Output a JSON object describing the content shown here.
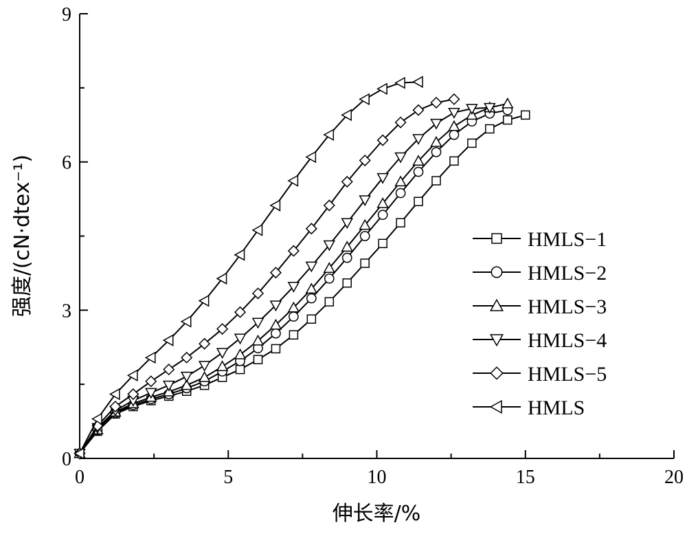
{
  "chart_data": {
    "type": "line",
    "xlabel": "伸长率/%",
    "ylabel": "强度/(cN·dtex⁻¹)",
    "xlim": [
      0,
      20
    ],
    "ylim": [
      0,
      9
    ],
    "x_ticks": [
      "0",
      "5",
      "10",
      "15",
      "20"
    ],
    "y_ticks": [
      "0",
      "3",
      "6",
      "9"
    ],
    "grid": false,
    "legend_position": "right",
    "series": [
      {
        "name": "HMLS−1",
        "marker": "square",
        "x": [
          0,
          0.6,
          1.2,
          1.8,
          2.4,
          3.0,
          3.6,
          4.2,
          4.8,
          5.4,
          6.0,
          6.6,
          7.2,
          7.8,
          8.4,
          9.0,
          9.6,
          10.2,
          10.8,
          11.4,
          12.0,
          12.6,
          13.2,
          13.8,
          14.4,
          15.0
        ],
        "y": [
          0.1,
          0.55,
          0.9,
          1.05,
          1.17,
          1.26,
          1.36,
          1.48,
          1.64,
          1.8,
          2.0,
          2.22,
          2.5,
          2.82,
          3.17,
          3.55,
          3.95,
          4.35,
          4.77,
          5.2,
          5.62,
          6.02,
          6.38,
          6.67,
          6.85,
          6.95
        ]
      },
      {
        "name": "HMLS−2",
        "marker": "circle",
        "x": [
          0,
          0.6,
          1.2,
          1.8,
          2.4,
          3.0,
          3.6,
          4.2,
          4.8,
          5.4,
          6.0,
          6.6,
          7.2,
          7.8,
          8.4,
          9.0,
          9.6,
          10.2,
          10.8,
          11.4,
          12.0,
          12.6,
          13.2,
          13.8,
          14.4
        ],
        "y": [
          0.1,
          0.57,
          0.92,
          1.08,
          1.2,
          1.3,
          1.42,
          1.56,
          1.76,
          1.97,
          2.23,
          2.53,
          2.87,
          3.24,
          3.64,
          4.06,
          4.5,
          4.93,
          5.37,
          5.8,
          6.2,
          6.55,
          6.82,
          6.98,
          7.05
        ]
      },
      {
        "name": "HMLS−3",
        "marker": "triangle-up",
        "x": [
          0,
          0.6,
          1.2,
          1.8,
          2.4,
          3.0,
          3.6,
          4.2,
          4.8,
          5.4,
          6.0,
          6.6,
          7.2,
          7.8,
          8.4,
          9.0,
          9.6,
          10.2,
          10.8,
          11.4,
          12.0,
          12.6,
          13.2,
          13.8,
          14.4
        ],
        "y": [
          0.1,
          0.58,
          0.94,
          1.11,
          1.24,
          1.35,
          1.48,
          1.64,
          1.86,
          2.1,
          2.38,
          2.7,
          3.05,
          3.43,
          3.85,
          4.28,
          4.72,
          5.16,
          5.6,
          6.02,
          6.4,
          6.72,
          6.95,
          7.1,
          7.18
        ]
      },
      {
        "name": "HMLS−4",
        "marker": "triangle-down",
        "x": [
          0,
          0.6,
          1.2,
          1.8,
          2.4,
          3.0,
          3.6,
          4.2,
          4.8,
          5.4,
          6.0,
          6.6,
          7.2,
          7.8,
          8.4,
          9.0,
          9.6,
          10.2,
          10.8,
          11.4,
          12.0,
          12.6,
          13.2,
          13.8
        ],
        "y": [
          0.1,
          0.62,
          0.97,
          1.17,
          1.33,
          1.48,
          1.66,
          1.88,
          2.14,
          2.43,
          2.75,
          3.1,
          3.48,
          3.89,
          4.32,
          4.77,
          5.23,
          5.68,
          6.1,
          6.47,
          6.78,
          7.0,
          7.08,
          7.1
        ]
      },
      {
        "name": "HMLS−5",
        "marker": "diamond",
        "x": [
          0,
          0.6,
          1.2,
          1.8,
          2.4,
          3.0,
          3.6,
          4.2,
          4.8,
          5.4,
          6.0,
          6.6,
          7.2,
          7.8,
          8.4,
          9.0,
          9.6,
          10.2,
          10.8,
          11.4,
          12.0,
          12.6
        ],
        "y": [
          0.1,
          0.66,
          1.05,
          1.3,
          1.56,
          1.8,
          2.04,
          2.32,
          2.62,
          2.96,
          3.34,
          3.76,
          4.2,
          4.65,
          5.12,
          5.6,
          6.03,
          6.44,
          6.8,
          7.05,
          7.2,
          7.27
        ]
      },
      {
        "name": "HMLS",
        "marker": "triangle-left",
        "x": [
          0,
          0.6,
          1.2,
          1.8,
          2.4,
          3.0,
          3.6,
          4.2,
          4.8,
          5.4,
          6.0,
          6.6,
          7.2,
          7.8,
          8.4,
          9.0,
          9.6,
          10.2,
          10.8,
          11.4
        ],
        "y": [
          0.1,
          0.8,
          1.3,
          1.68,
          2.04,
          2.39,
          2.77,
          3.19,
          3.64,
          4.12,
          4.62,
          5.12,
          5.62,
          6.1,
          6.55,
          6.95,
          7.27,
          7.48,
          7.6,
          7.62
        ]
      }
    ]
  }
}
